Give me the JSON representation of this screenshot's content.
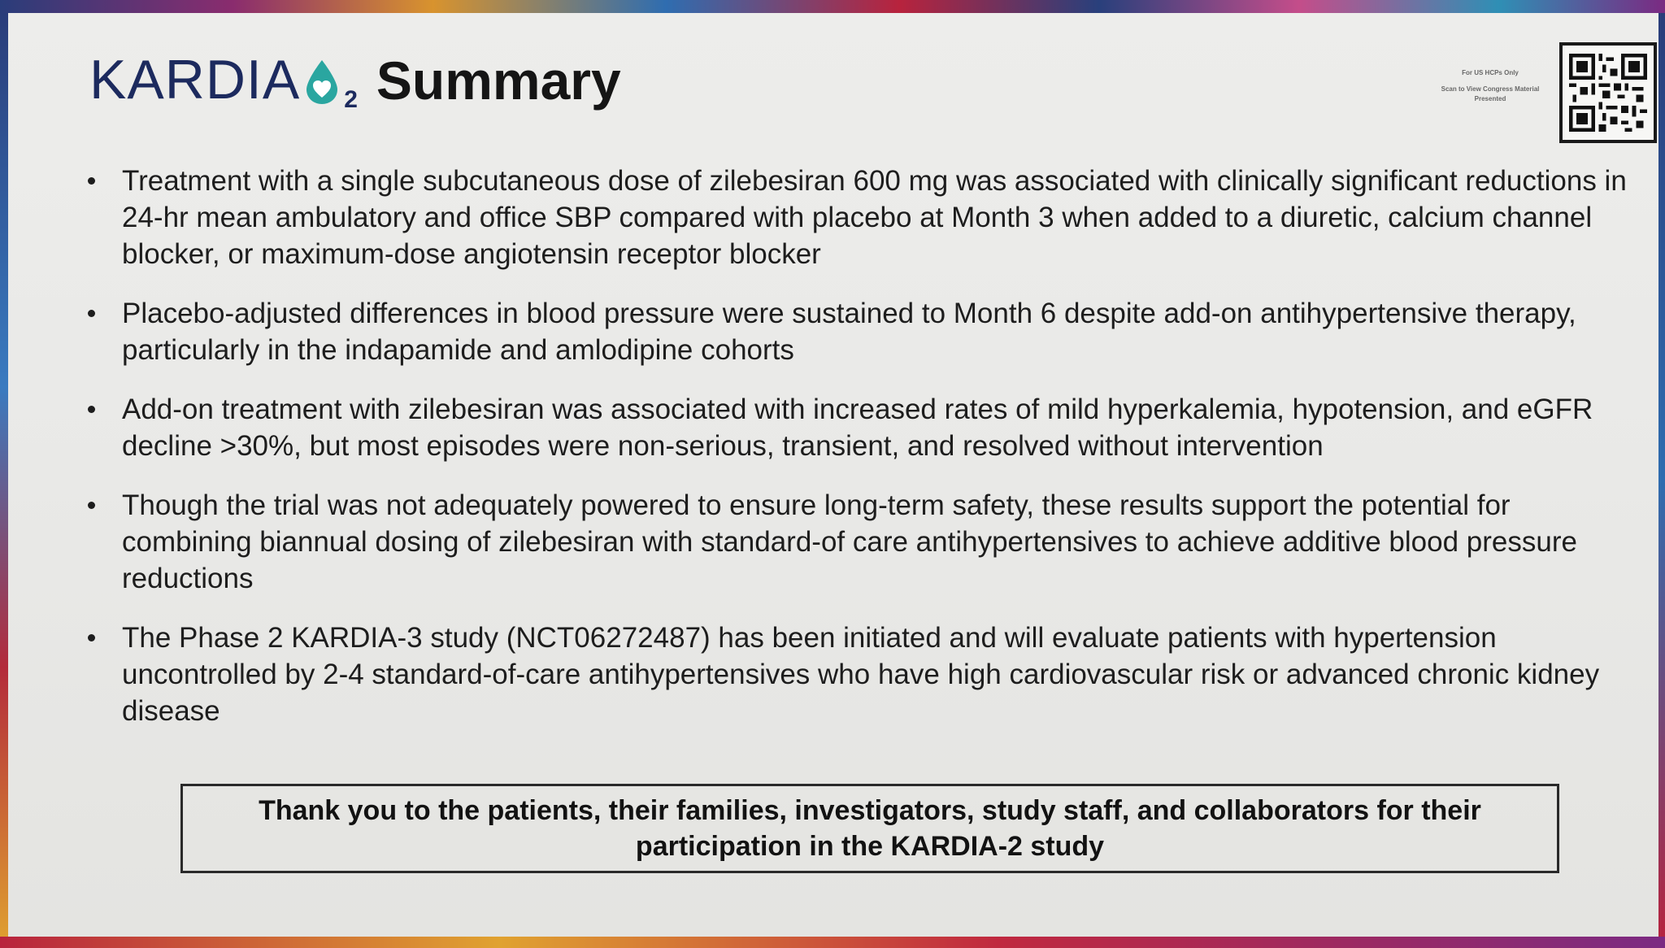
{
  "header": {
    "logo_text": "KARDIA",
    "logo_subscript": "2",
    "title": "Summary"
  },
  "qr": {
    "note_1": "For US HCPs Only",
    "note_2": "Scan to View Congress Material Presented"
  },
  "bullets": [
    "Treatment with a single subcutaneous dose of zilebesiran 600 mg was associated with clinically significant reductions in 24-hr mean ambulatory and office SBP compared with placebo at Month 3 when added to a diuretic, calcium channel blocker, or maximum-dose angiotensin receptor blocker",
    "Placebo-adjusted differences in blood pressure were sustained to Month 6 despite add-on antihypertensive therapy, particularly in the indapamide and amlodipine cohorts",
    "Add-on treatment with zilebesiran was associated with increased rates of mild hyperkalemia, hypotension, and eGFR decline >30%, but most episodes were non-serious, transient, and resolved without intervention",
    "Though the trial was not adequately powered to ensure long-term safety, these results support the potential for combining biannual dosing of zilebesiran with standard-of care antihypertensives to achieve additive blood pressure reductions",
    "The Phase 2 KARDIA-3 study (NCT06272487) has been initiated and will evaluate patients with hypertension uncontrolled by 2-4 standard-of-care antihypertensives who have high cardiovascular risk or advanced chronic kidney disease"
  ],
  "thanks": "Thank you to the patients, their families, investigators, study staff, and collaborators for their participation in the KARDIA-2 study",
  "colors": {
    "brand_navy": "#1c2a5e",
    "brand_teal": "#2aa6a0",
    "slide_bg": "#ebebe9"
  }
}
